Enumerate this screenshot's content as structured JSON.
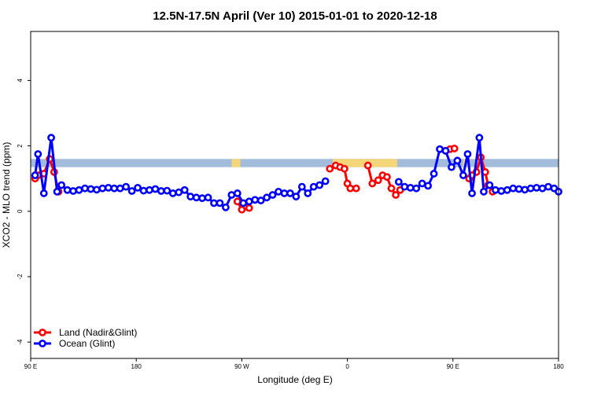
{
  "chart_data": {
    "type": "line",
    "title": "12.5N-17.5N April (Ver 10)   2015-01-01 to 2020-12-18",
    "xlabel": "Longitude (deg E)",
    "ylabel": "XCO2 - MLO trend (ppm)",
    "xlim": [
      90,
      450
    ],
    "ylim": [
      -4.5,
      5.5
    ],
    "x_ticks": [
      {
        "value": 90,
        "label": "90 E"
      },
      {
        "value": 162,
        "label": "180"
      },
      {
        "value": 234,
        "label": "90 W"
      },
      {
        "value": 306,
        "label": "0"
      },
      {
        "value": 378,
        "label": "90 E"
      },
      {
        "value": 450,
        "label": "180"
      }
    ],
    "y_ticks": [
      {
        "value": -4,
        "label": "-4"
      },
      {
        "value": -2,
        "label": "-2"
      },
      {
        "value": 0,
        "label": "0"
      },
      {
        "value": 2,
        "label": "2"
      },
      {
        "value": 4,
        "label": "4"
      }
    ],
    "band": {
      "y_from": 1.35,
      "y_to": 1.6,
      "ocean_color": "#a3bcdc",
      "land_color": "#f5d57a"
    },
    "land_segments": [
      [
        227,
        233
      ],
      [
        296,
        340
      ],
      [
        385,
        387
      ]
    ],
    "legend_placement": "bottom-left",
    "series": [
      {
        "name": "Land (Nadir&Glint)",
        "color": "#ff0000",
        "segments": [
          [
            [
              93,
              1.0
            ],
            [
              95,
              1.1
            ],
            [
              99,
              1.15
            ],
            [
              103,
              1.6
            ],
            [
              106,
              1.2
            ],
            [
              109,
              0.6
            ]
          ],
          [
            [
              231,
              0.3
            ],
            [
              234,
              0.05
            ],
            [
              237,
              0.15
            ],
            [
              239,
              0.1
            ]
          ],
          [
            [
              294,
              1.3
            ],
            [
              298,
              1.4
            ],
            [
              301,
              1.35
            ],
            [
              304,
              1.3
            ],
            [
              306,
              0.85
            ],
            [
              308,
              0.7
            ],
            [
              312,
              0.7
            ]
          ],
          [
            [
              320,
              1.4
            ],
            [
              323,
              0.85
            ],
            [
              327,
              0.95
            ],
            [
              330,
              1.1
            ],
            [
              333,
              1.05
            ],
            [
              336,
              0.7
            ],
            [
              339,
              0.5
            ],
            [
              342,
              0.65
            ]
          ],
          [
            [
              373,
              1.85
            ],
            [
              376,
              1.9
            ],
            [
              379,
              1.92
            ]
          ],
          [
            [
              389,
              1.0
            ],
            [
              391,
              1.1
            ],
            [
              394,
              1.2
            ],
            [
              397,
              1.65
            ],
            [
              400,
              1.2
            ],
            [
              402,
              0.8
            ],
            [
              405,
              0.6
            ]
          ]
        ]
      },
      {
        "name": "Ocean (Glint)",
        "color": "#0000ff",
        "segments": [
          [
            [
              93,
              1.1
            ],
            [
              95,
              1.75
            ],
            [
              99,
              0.55
            ],
            [
              104,
              2.25
            ],
            [
              108,
              0.6
            ],
            [
              111,
              0.8
            ],
            [
              115,
              0.65
            ],
            [
              119,
              0.62
            ],
            [
              123,
              0.65
            ],
            [
              127,
              0.7
            ],
            [
              131,
              0.68
            ],
            [
              135,
              0.66
            ],
            [
              139,
              0.7
            ],
            [
              143,
              0.72
            ],
            [
              147,
              0.7
            ],
            [
              151,
              0.7
            ],
            [
              155,
              0.75
            ],
            [
              159,
              0.62
            ],
            [
              163,
              0.72
            ],
            [
              167,
              0.63
            ],
            [
              171,
              0.65
            ],
            [
              175,
              0.68
            ],
            [
              179,
              0.62
            ],
            [
              183,
              0.63
            ],
            [
              187,
              0.55
            ],
            [
              191,
              0.58
            ],
            [
              195,
              0.65
            ],
            [
              199,
              0.45
            ],
            [
              203,
              0.42
            ],
            [
              207,
              0.4
            ],
            [
              211,
              0.42
            ],
            [
              215,
              0.25
            ],
            [
              219,
              0.25
            ],
            [
              223,
              0.12
            ],
            [
              227,
              0.5
            ],
            [
              231,
              0.55
            ],
            [
              235,
              0.25
            ],
            [
              239,
              0.3
            ],
            [
              243,
              0.35
            ],
            [
              247,
              0.33
            ],
            [
              251,
              0.42
            ],
            [
              255,
              0.5
            ],
            [
              259,
              0.6
            ],
            [
              263,
              0.55
            ],
            [
              267,
              0.55
            ],
            [
              271,
              0.45
            ],
            [
              275,
              0.75
            ],
            [
              279,
              0.55
            ],
            [
              283,
              0.75
            ],
            [
              287,
              0.8
            ],
            [
              291,
              0.92
            ]
          ],
          [
            [
              341,
              0.9
            ],
            [
              345,
              0.75
            ],
            [
              349,
              0.72
            ],
            [
              353,
              0.7
            ],
            [
              357,
              0.85
            ],
            [
              361,
              0.78
            ],
            [
              365,
              1.15
            ],
            [
              369,
              1.9
            ],
            [
              373,
              1.85
            ],
            [
              377,
              1.35
            ],
            [
              381,
              1.55
            ],
            [
              385,
              1.1
            ],
            [
              388,
              1.75
            ],
            [
              391,
              0.55
            ],
            [
              396,
              2.25
            ],
            [
              399,
              0.6
            ],
            [
              403,
              0.8
            ],
            [
              407,
              0.65
            ],
            [
              411,
              0.62
            ],
            [
              415,
              0.65
            ],
            [
              419,
              0.7
            ],
            [
              423,
              0.68
            ],
            [
              427,
              0.66
            ],
            [
              431,
              0.7
            ],
            [
              435,
              0.72
            ],
            [
              439,
              0.7
            ],
            [
              443,
              0.75
            ],
            [
              447,
              0.7
            ],
            [
              450,
              0.6
            ]
          ]
        ]
      }
    ]
  }
}
